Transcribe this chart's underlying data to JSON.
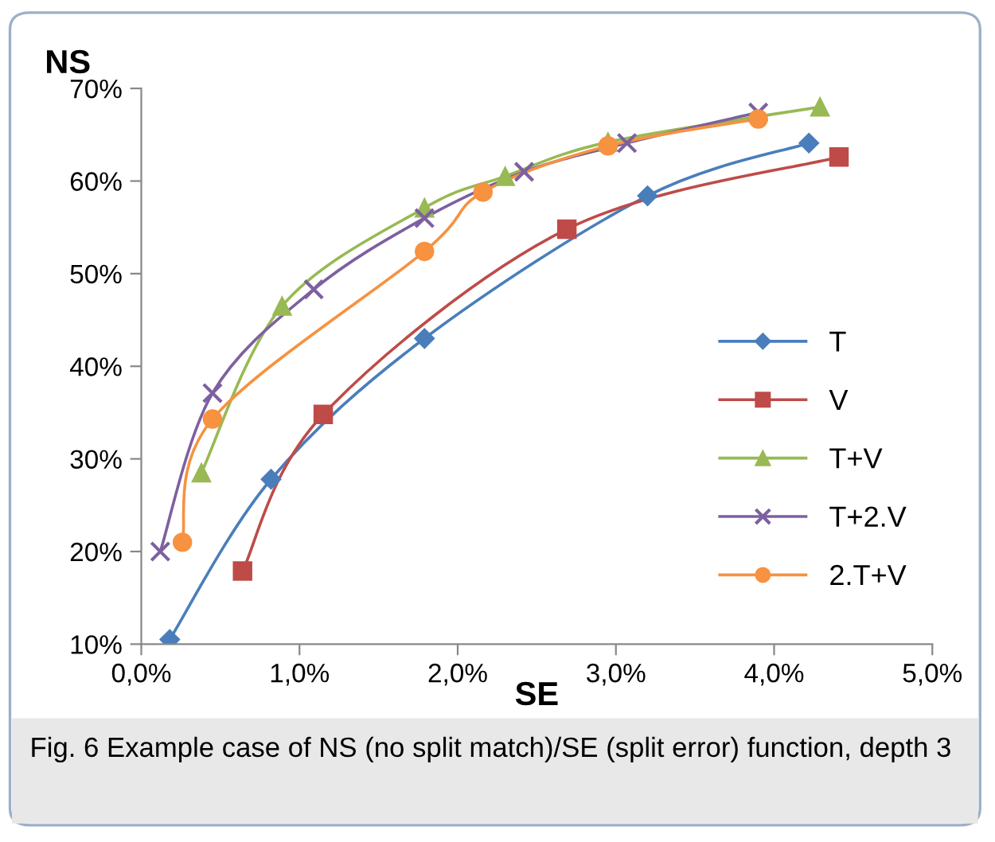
{
  "chart_data": {
    "type": "line",
    "ylabel": "NS",
    "xlabel": "SE",
    "annotations": [
      "Fig. 6 Example case of NS (no split match)/SE (split error) function, depth 3"
    ],
    "xlim": [
      0,
      5
    ],
    "xticks": [
      {
        "value": 0,
        "label": "0,0%"
      },
      {
        "value": 1,
        "label": "1,0%"
      },
      {
        "value": 2,
        "label": "2,0%"
      },
      {
        "value": 3,
        "label": "3,0%"
      },
      {
        "value": 4,
        "label": "4,0%"
      },
      {
        "value": 5,
        "label": "5,0%"
      }
    ],
    "ylim": [
      10,
      70
    ],
    "yticks": [
      {
        "value": 10,
        "label": "10%"
      },
      {
        "value": 20,
        "label": "20%"
      },
      {
        "value": 30,
        "label": "30%"
      },
      {
        "value": 40,
        "label": "40%"
      },
      {
        "value": 50,
        "label": "50%"
      },
      {
        "value": 60,
        "label": "60%"
      },
      {
        "value": 70,
        "label": "70%"
      }
    ],
    "grid": false,
    "legend": "right",
    "series": [
      {
        "name": "T",
        "color": "#4a7ebb",
        "marker": "diamond",
        "x": [
          0.18,
          0.82,
          1.79,
          3.2,
          4.22
        ],
        "values": [
          10.5,
          27.8,
          43,
          58.4,
          64.1
        ]
      },
      {
        "name": "V",
        "color": "#be4b48",
        "marker": "square",
        "x": [
          0.64,
          1.15,
          2.69,
          4.41
        ],
        "values": [
          17.9,
          34.8,
          54.8,
          62.6
        ]
      },
      {
        "name": "T+V",
        "color": "#98b954",
        "marker": "triangle",
        "x": [
          0.38,
          0.89,
          1.79,
          2.3,
          2.95,
          4.29
        ],
        "values": [
          28.5,
          46.5,
          57.1,
          60.5,
          64.2,
          68
        ]
      },
      {
        "name": "T+2.V",
        "color": "#7d60a0",
        "marker": "cross",
        "x": [
          0.12,
          0.45,
          1.09,
          1.79,
          2.42,
          3.07,
          3.9
        ],
        "values": [
          20,
          37.1,
          48.3,
          56,
          61,
          64.1,
          67.4
        ]
      },
      {
        "name": "2.T+V",
        "color": "#f69240",
        "marker": "circle",
        "x": [
          0.26,
          0.45,
          1.79,
          2.16,
          2.95,
          3.9
        ],
        "values": [
          21,
          34.3,
          52.4,
          58.8,
          63.8,
          66.7
        ]
      }
    ]
  }
}
